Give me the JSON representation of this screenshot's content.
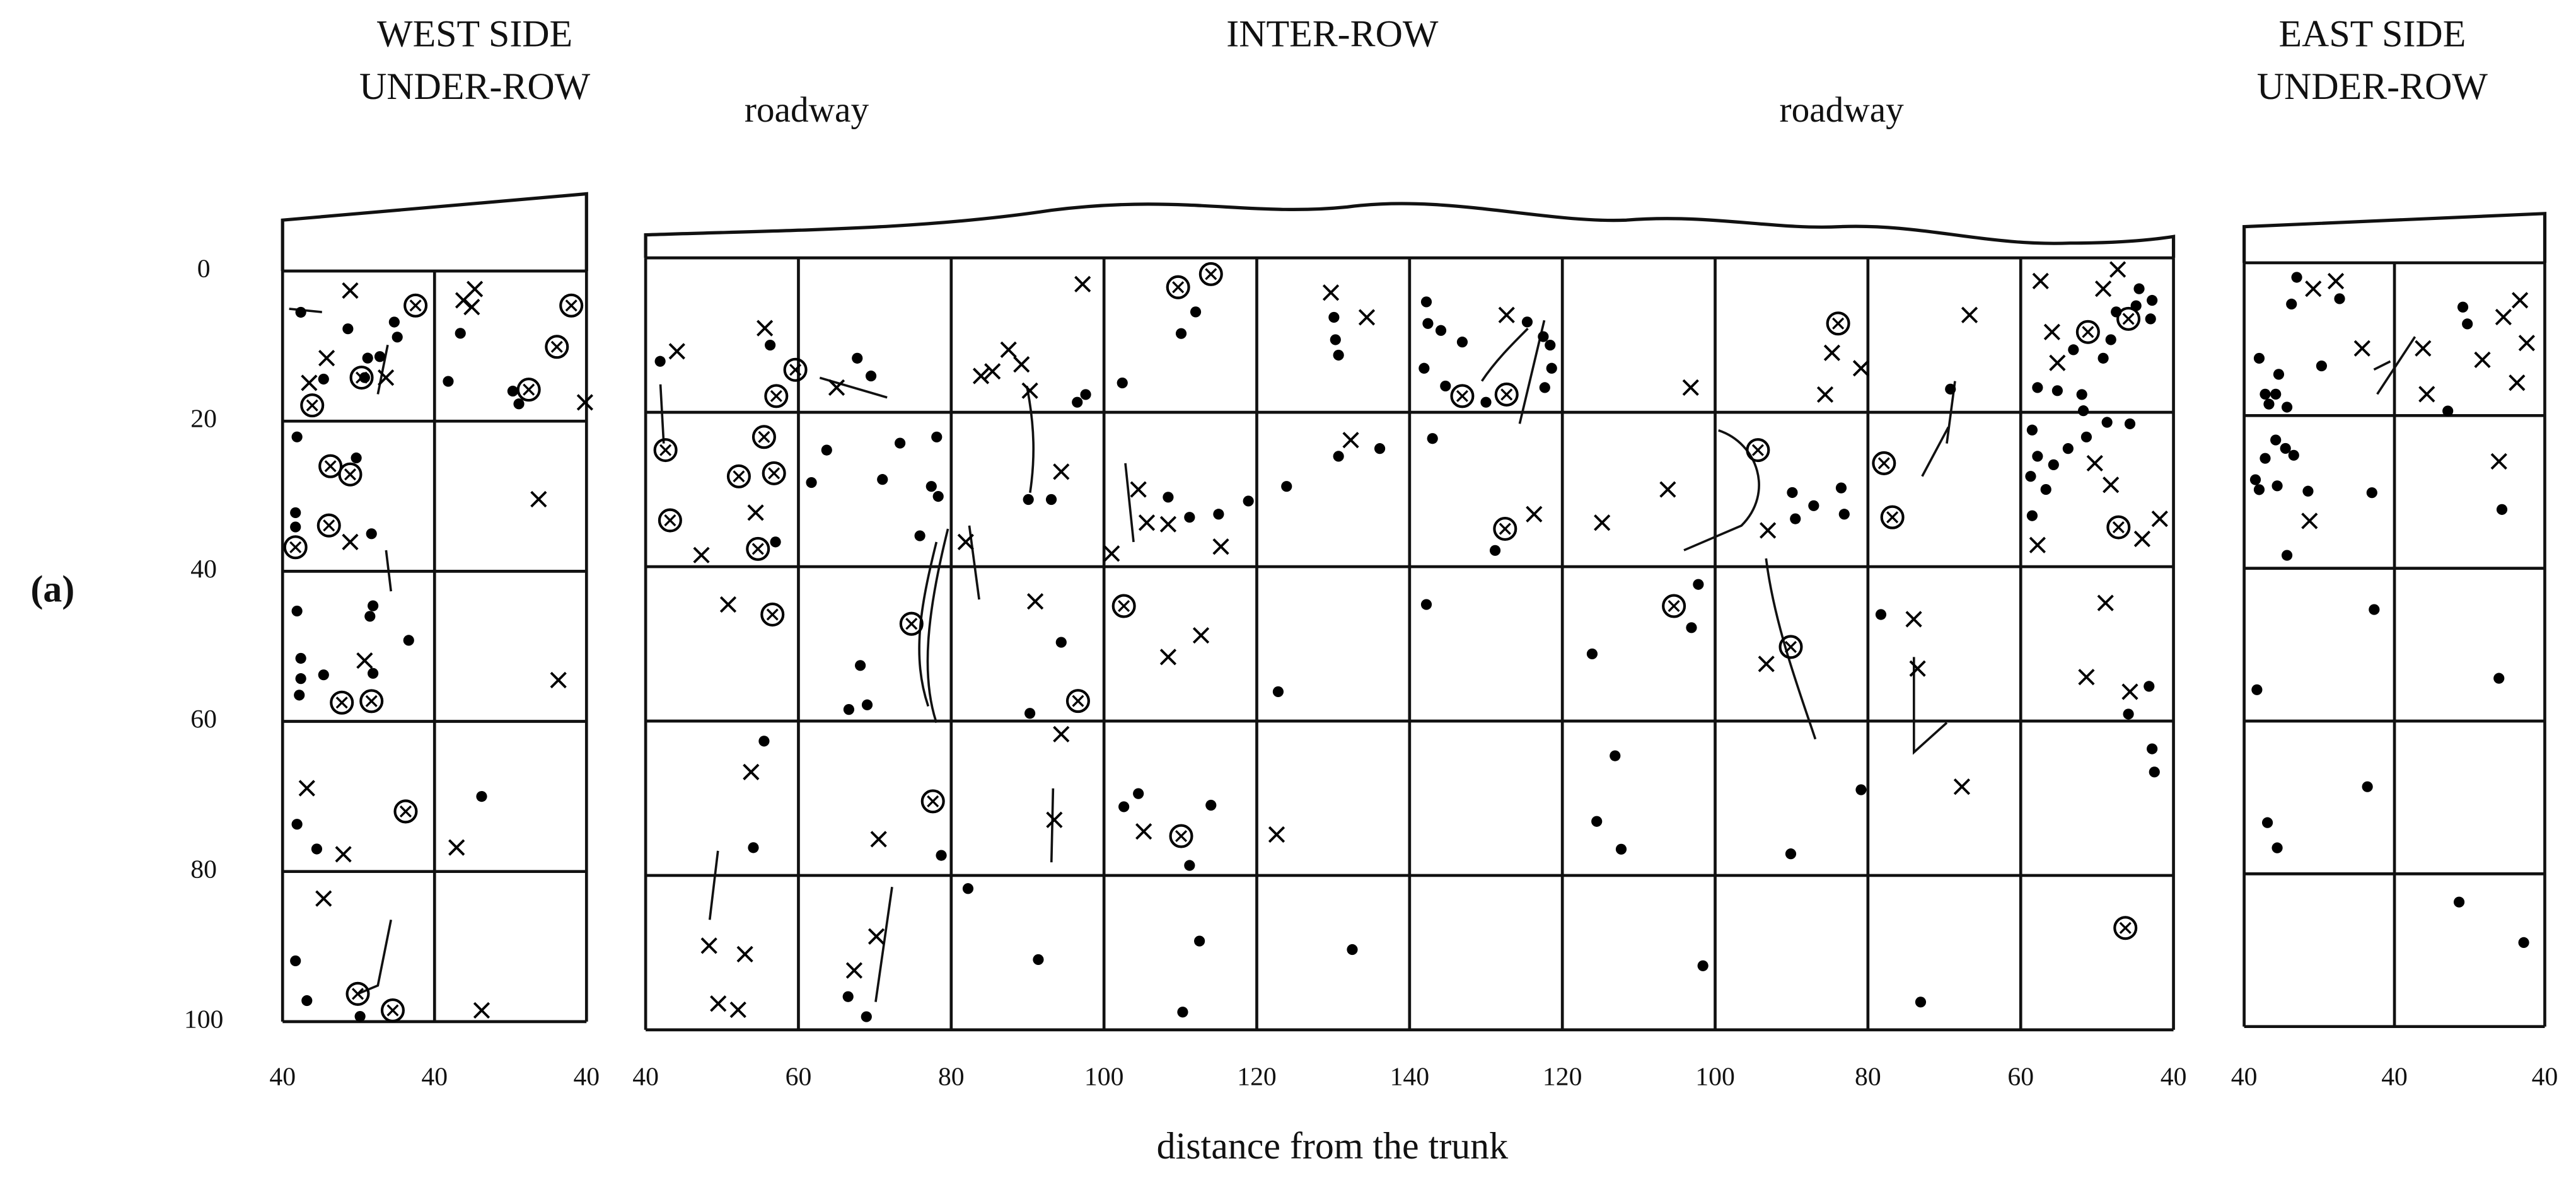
{
  "chart_data": {
    "panel_label": "(a)",
    "xlabel": "distance from the trunk",
    "panels": [
      {
        "type": "scatter",
        "title": [
          "WEST SIDE",
          "UNDER-ROW"
        ],
        "xlim": [
          0,
          40
        ],
        "xticks": [
          {
            "value": 0,
            "label": "40"
          },
          {
            "value": 20,
            "label": "40"
          },
          {
            "value": 40,
            "label": "40"
          }
        ],
        "ylim": [
          0,
          100
        ],
        "yticks": [
          0,
          20,
          40,
          60,
          80,
          100
        ],
        "show_ytick_labels": true,
        "y_inverted": true,
        "grid": true,
        "series": [
          {
            "marker": "dot",
            "color": "#000000",
            "x": [
              2.4,
              8.6,
              14.7,
              15.1,
              11.2,
              12.8,
              5.4,
              10.8,
              23.4,
              21.8,
              31.1,
              30.3,
              1.9,
              9.7,
              1.7,
              1.7,
              11.7,
              1.9,
              11.9,
              11.5,
              2.4,
              16.6,
              2.4,
              5.4,
              11.9,
              2.2,
              1.9,
              4.5,
              26.2,
              1.7,
              3.2,
              10.2
            ],
            "y": [
              5.5,
              7.7,
              6.8,
              8.8,
              11.6,
              11.4,
              14.4,
              14.2,
              8.3,
              14.7,
              17.7,
              16,
              22.1,
              24.9,
              32.2,
              34.1,
              35,
              45.3,
              44.6,
              46,
              51.6,
              49.2,
              54.3,
              53.8,
              53.6,
              56.5,
              73.7,
              77,
              70,
              91.9,
              97.2,
              99.3
            ]
          },
          {
            "marker": "cross",
            "color": "#000000",
            "x": [
              8.9,
              3.5,
              5.8,
              13.6,
              23.8,
              25.3,
              24.9,
              39.8,
              33.7,
              8.9,
              10.8,
              36.3,
              3.2,
              8,
              22.9,
              5.4,
              26.2
            ],
            "y": [
              2.6,
              14.9,
              11.6,
              14.2,
              3.9,
              2.4,
              4.8,
              17.5,
              30.4,
              36.1,
              51.9,
              54.5,
              68.9,
              77.7,
              76.8,
              83.6,
              98.5
            ]
          },
          {
            "marker": "circled-cross",
            "color": "#000000",
            "x": [
              17.5,
              3.9,
              10.4,
              6.3,
              8.9,
              6.1,
              1.7,
              7.8,
              11.7,
              16.2,
              9.9,
              14.5,
              38,
              36.1,
              32.4
            ],
            "y": [
              4.6,
              17.9,
              14.2,
              26,
              27.1,
              33.9,
              36.8,
              57.5,
              57.3,
              72,
              96.3,
              98.5,
              4.6,
              10.1,
              15.8
            ]
          }
        ]
      },
      {
        "type": "scatter",
        "title": [
          "INTER-ROW"
        ],
        "annotations": [
          "roadway",
          "roadway"
        ],
        "xlim": [
          40,
          240
        ],
        "xticks": [
          40,
          60,
          80,
          100,
          120,
          140,
          {
            "value": 160,
            "label": "120"
          },
          {
            "value": 180,
            "label": "100"
          },
          {
            "value": 200,
            "label": "80"
          },
          {
            "value": 220,
            "label": "60"
          },
          {
            "value": 240,
            "label": "40"
          }
        ],
        "ylim": [
          0,
          100
        ],
        "yticks": [
          0,
          20,
          40,
          60,
          80,
          100
        ],
        "show_ytick_labels": false,
        "y_inverted": true,
        "grid": true,
        "series": [
          {
            "marker": "dot",
            "color": "#000000",
            "x": [
              41.9,
              56.3,
              67.7,
              69.5,
              97.6,
              96.5,
              102.4,
              112,
              110.1,
              130.1,
              130.3,
              130.7,
              63.7,
              73.3,
              77.4,
              78.3,
              75.9,
              78.1,
              71,
              61.7,
              57,
              90.1,
              93.1,
              108.4,
              111.2,
              115,
              118.9,
              123.9,
              130.7,
              136.1,
              143,
              142.2,
              142.4,
              144.1,
              141.9,
              146.9,
              144.7,
              150,
              155.4,
              157.5,
              158.4,
              158.6,
              157.7,
              151.2,
              142.2,
              163.9,
              166.9,
              164.5,
              167.7,
              177.8,
              176.9,
              178.4,
              190.1,
              192.9,
              196.5,
              196.9,
              190.5,
              199.1,
              189.9,
              201.7,
              210.8,
              206.9,
              228,
              222.2,
              224.8,
              226.9,
              232.5,
              235.1,
              235.5,
              237.2,
              237,
              231.8,
              230.8,
              228.2,
              221.5,
              222.2,
              224.3,
              221.3,
              223.3,
              221.5,
              234.3,
              231.3,
              228.6,
              226.2,
              236.8,
              237.2,
              237.5,
              234.1,
              68.1,
              66.6,
              69,
              90.3,
              94.4,
              82.2,
              55.5,
              54.1,
              78.7,
              102.6,
              104.5,
              111.2,
              114,
              112.5,
              110.3,
              122.8,
              132.5,
              66.5,
              68.9,
              91.4
            ],
            "y": [
              13.4,
              11.3,
              13,
              15.3,
              17.7,
              18.7,
              16.2,
              7,
              9.8,
              7.7,
              10.6,
              12.6,
              24.9,
              24,
              29.6,
              30.9,
              36,
              23.2,
              28.7,
              29.1,
              36.8,
              31.3,
              31.3,
              31,
              33.6,
              33.2,
              31.5,
              29.6,
              25.7,
              24.7,
              23.4,
              5.7,
              8.5,
              9.4,
              14.3,
              10.9,
              16.6,
              18.7,
              8.3,
              10.2,
              11.3,
              14.3,
              16.8,
              37.9,
              44.9,
              51.3,
              64.5,
              73,
              76.6,
              42.3,
              47.9,
              91.7,
              30.4,
              32.1,
              29.8,
              33.2,
              33.8,
              68.9,
              77.2,
              46.2,
              17,
              96.4,
              17.7,
              16.8,
              17.2,
              11.9,
              7,
              6.2,
              4,
              5.5,
              7.9,
              10.6,
              13,
              19.8,
              22.3,
              25.7,
              26.8,
              28.3,
              30,
              33.4,
              21.5,
              21.3,
              23.2,
              24.7,
              55.5,
              63.6,
              66.6,
              59.1,
              52.8,
              58.5,
              57.9,
              59,
              49.8,
              81.7,
              62.6,
              76.4,
              77.4,
              71.1,
              69.4,
              78.7,
              70.9,
              88.5,
              97.7,
              56.2,
              89.6,
              95.7,
              98.3,
              90.9
            ]
          },
          {
            "marker": "cross",
            "color": "#000000",
            "x": [
              44.1,
              55.6,
              65,
              83.9,
              85.4,
              87.5,
              89.2,
              90.3,
              97.2,
              129.7,
              134.4,
              152.7,
              176.8,
              195.3,
              199.1,
              194.4,
              213.3,
              222.6,
              232.7,
              230.8,
              224.1,
              224.8,
              229.7,
              231.8,
              235.9,
              238.2,
              222.2,
              231.1,
              228.6,
              234.3,
              47.3,
              54.4,
              81.9,
              94.4,
              104.5,
              105.6,
              108.4,
              101,
              115.3,
              132.3,
              156.3,
              165.2,
              173.8,
              186.9,
              206,
              186.7,
              212.3,
              50.8,
              91,
              108.4,
              112.7,
              94.4,
              53.8,
              70.5,
              93.5,
              105.2,
              122.6,
              48.3,
              53,
              67.3,
              70.2,
              49.5,
              52.1,
              206.5
            ],
            "y": [
              12.1,
              9.1,
              16.8,
              15.3,
              14.7,
              11.9,
              13.8,
              17.2,
              3.4,
              4.5,
              7.7,
              7.4,
              16.8,
              12.3,
              14.3,
              17.7,
              7.4,
              3,
              1.5,
              4,
              9.6,
              13.6,
              26.6,
              29.4,
              36.4,
              33.8,
              37.2,
              44.7,
              54.3,
              56.2,
              38.5,
              33,
              36.8,
              27.7,
              30,
              34.3,
              34.5,
              38.3,
              37.4,
              23.6,
              33.2,
              34.3,
              30,
              35.3,
              46.8,
              52.6,
              68.5,
              44.9,
              44.5,
              51.7,
              48.9,
              61.7,
              66.6,
              75.3,
              72.8,
              74.3,
              74.7,
              89.1,
              90.2,
              92.3,
              87.9,
              96.6,
              97.4,
              53.2
            ]
          },
          {
            "marker": "circled-cross",
            "color": "#000000",
            "x": [
              42.6,
              43.2,
              55.5,
              52.2,
              56.8,
              54.7,
              57.1,
              59.6,
              74.8,
              56.6,
              77.6,
              96.6,
              102.6,
              109.7,
              114,
              110.1,
              146.9,
              152.7,
              152.5,
              185.6,
              174.6,
              189.9,
              196.1,
              202.1,
              203.2,
              228.8,
              234.1,
              232.8,
              233.7
            ],
            "y": [
              24.9,
              34,
              23.2,
              28.3,
              27.9,
              37.7,
              17.9,
              14.5,
              47.4,
              46.2,
              70.4,
              57.4,
              45.1,
              3.8,
              2.1,
              74.9,
              17.9,
              17.7,
              35.1,
              24.9,
              45.1,
              50.4,
              8.5,
              26.6,
              33.6,
              9.6,
              7.9,
              34.9,
              86.8
            ]
          }
        ]
      },
      {
        "type": "scatter",
        "title": [
          "EAST SIDE",
          "UNDER-ROW"
        ],
        "xlim": [
          0,
          40
        ],
        "xticks": [
          {
            "value": 0,
            "label": "40"
          },
          {
            "value": 20,
            "label": "40"
          },
          {
            "value": 40,
            "label": "40"
          }
        ],
        "ylim": [
          0,
          100
        ],
        "yticks": [
          0,
          20,
          40,
          60,
          80,
          100
        ],
        "show_ytick_labels": false,
        "y_inverted": true,
        "grid": true,
        "series": [
          {
            "marker": "dot",
            "color": "#000000",
            "x": [
              7,
              6.3,
              2,
              4.6,
              2.8,
              4.2,
              5.7,
              3.3,
              4.2,
              5.5,
              2.8,
              6.6,
              1.5,
              4.4,
              2,
              8.5,
              5.7,
              10.3,
              12.7,
              29.1,
              29.7,
              27.1,
              17,
              34.3,
              17.3,
              33.9,
              1.7,
              16.4,
              3.1,
              4.4,
              28.6,
              37.2
            ],
            "y": [
              1.9,
              5.4,
              12.5,
              14.6,
              17.2,
              17.2,
              18.9,
              18.5,
              23.2,
              24.3,
              25.6,
              25.2,
              28.4,
              29.2,
              29.7,
              29.9,
              38.3,
              13.5,
              4.7,
              5.8,
              8,
              19.4,
              30.1,
              32.3,
              45.4,
              54.4,
              55.9,
              68.6,
              73.3,
              76.6,
              83.7,
              89
            ]
          },
          {
            "marker": "cross",
            "color": "#000000",
            "x": [
              9.2,
              12.2,
              15.7,
              23.8,
              24.3,
              31.7,
              34.5,
              36.7,
              37.6,
              36.3,
              33.9,
              8.7
            ],
            "y": [
              3.4,
              2.4,
              11.2,
              11.2,
              17.2,
              12.7,
              7.1,
              4.9,
              10.5,
              15.7,
              26,
              33.8
            ]
          }
        ]
      }
    ]
  }
}
